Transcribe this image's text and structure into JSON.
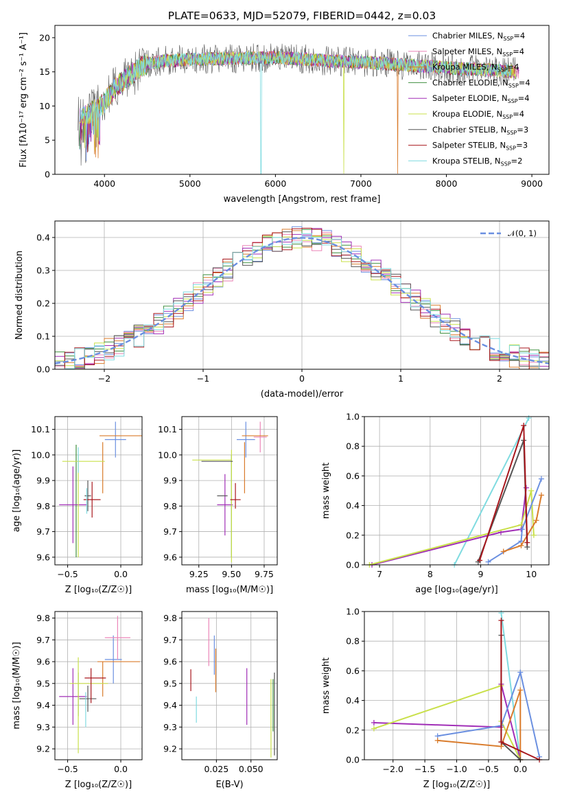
{
  "title": "PLATE=0633, MJD=52079, FIBERID=0442, z=0.03",
  "series_colors": {
    "Chabrier MILES": "#6a8fe0",
    "Salpeter MILES": "#ec86b8",
    "Kroupa MILES": "#d97b2b",
    "Chabrier ELODIE": "#3f8f3f",
    "Salpeter ELODIE": "#a02db6",
    "Kroupa ELODIE": "#c9e04a",
    "Chabrier STELIB": "#555555",
    "Salpeter STELIB": "#a8161c",
    "Kroupa STELIB": "#7fdbe0"
  },
  "legend": [
    {
      "name": "Chabrier MILES",
      "pre": "Chabrier MILES, N",
      "sub": "SSP",
      "post": "=4"
    },
    {
      "name": "Salpeter MILES",
      "pre": "Salpeter MILES, N",
      "sub": "SSP",
      "post": "=4"
    },
    {
      "name": "Kroupa MILES",
      "pre": "Kroupa MILES, N",
      "sub": "SSP",
      "post": "=4"
    },
    {
      "name": "Chabrier ELODIE",
      "pre": "Chabrier ELODIE, N",
      "sub": "SSP",
      "post": "=4"
    },
    {
      "name": "Salpeter ELODIE",
      "pre": "Salpeter ELODIE, N",
      "sub": "SSP",
      "post": "=4"
    },
    {
      "name": "Kroupa ELODIE",
      "pre": "Kroupa ELODIE, N",
      "sub": "SSP",
      "post": "=4"
    },
    {
      "name": "Chabrier STELIB",
      "pre": "Chabrier STELIB, N",
      "sub": "SSP",
      "post": "=3"
    },
    {
      "name": "Salpeter STELIB",
      "pre": "Salpeter STELIB, N",
      "sub": "SSP",
      "post": "=3"
    },
    {
      "name": "Kroupa STELIB",
      "pre": "Kroupa STELIB, N",
      "sub": "SSP",
      "post": "=2"
    }
  ],
  "chart_data": [
    {
      "id": "spectrum",
      "type": "line",
      "xlabel": "wavelength [Angstrom, rest frame]",
      "ylabel": "Flux [fλ10⁻¹⁷ erg cm⁻² s⁻¹ A⁻¹]",
      "xlim": [
        3420,
        9200
      ],
      "ylim": [
        0,
        21.8
      ],
      "xticks": [
        4000,
        5000,
        6000,
        7000,
        8000,
        9000
      ],
      "yticks": [
        0,
        5,
        10,
        15,
        20
      ],
      "grid": false,
      "legend_position": "upper right",
      "continuum": {
        "x": [
          3700,
          3800,
          3900,
          4000,
          4100,
          4200,
          4300,
          4400,
          4500,
          4700,
          5000,
          5200,
          5500,
          5800,
          6000,
          6300,
          6600,
          7000,
          7300,
          7500,
          7800,
          8000,
          8300,
          8600,
          8800
        ],
        "y": [
          8.0,
          8.8,
          9.5,
          10.5,
          12.3,
          13.5,
          14.5,
          15.5,
          16.2,
          16.6,
          16.8,
          16.9,
          17.0,
          17.0,
          17.1,
          16.9,
          16.6,
          16.4,
          16.2,
          16.0,
          15.8,
          15.6,
          15.4,
          15.2,
          15.0
        ]
      },
      "spectrum_xrange": [
        3690,
        8850
      ],
      "dropouts": [
        {
          "series": "Kroupa STELIB",
          "x": 5830
        },
        {
          "series": "Kroupa ELODIE",
          "x": 6800
        },
        {
          "series": "Kroupa MILES",
          "x": 7430
        }
      ]
    },
    {
      "id": "residuals",
      "type": "histogram",
      "xlabel": "(data-model)/error",
      "ylabel": "Normed distribution",
      "xlim": [
        -2.5,
        2.5
      ],
      "ylim": [
        0,
        0.45
      ],
      "xticks": [
        -2,
        -1,
        0,
        1,
        2
      ],
      "yticks": [
        0.0,
        0.1,
        0.2,
        0.3,
        0.4
      ],
      "bin_width": 0.1,
      "grid": true,
      "reference_curve": {
        "label": "𝒩(0, 1)",
        "mean": 0,
        "sigma": 1,
        "color": "#6a8fe0",
        "style": "dashed"
      },
      "legend_position": "upper right"
    },
    {
      "id": "age_vs_Z",
      "type": "errorbar",
      "xlabel": "Z [log₁₀(Z/Z☉)]",
      "ylabel": "age  [log₁₀(age/yr)]",
      "xlim": [
        -0.62,
        0.2
      ],
      "ylim": [
        9.57,
        10.15
      ],
      "xticks": [
        -0.5,
        0.0
      ],
      "xtick_labels": [
        "−0.5",
        "0.0"
      ],
      "yticks": [
        9.6,
        9.7,
        9.8,
        9.9,
        10.0,
        10.1
      ],
      "grid": true,
      "points": [
        {
          "series": "Chabrier MILES",
          "x": -0.05,
          "xerr": 0.1,
          "y": 10.06,
          "yerr": 0.07
        },
        {
          "series": "Salpeter MILES",
          "x": -0.05,
          "xerr": 0.0,
          "y": 10.07,
          "yerr": 0.0
        },
        {
          "series": "Kroupa MILES",
          "x": 0.0,
          "xerr": 0.2,
          "y": 10.075,
          "yerr": 0.0
        },
        {
          "series": "Kroupa MILES",
          "x": -0.17,
          "xerr": 0.0,
          "y": 9.95,
          "yerr": 0.1
        },
        {
          "series": "Chabrier ELODIE",
          "x": -0.42,
          "xerr": 0.0,
          "y": 9.82,
          "yerr": 0.22
        },
        {
          "series": "Salpeter ELODIE",
          "x": -0.45,
          "xerr": 0.13,
          "y": 9.805,
          "yerr": 0.15
        },
        {
          "series": "Kroupa ELODIE",
          "x": -0.35,
          "xerr": 0.2,
          "y": 9.975,
          "yerr": 0.0
        },
        {
          "series": "Kroupa ELODIE",
          "x": -0.4,
          "xerr": 0.0,
          "y": 9.8,
          "yerr": 0.2
        },
        {
          "series": "Chabrier STELIB",
          "x": -0.31,
          "xerr": 0.03,
          "y": 9.84,
          "yerr": 0.06
        },
        {
          "series": "Salpeter STELIB",
          "x": -0.27,
          "xerr": 0.08,
          "y": 9.825,
          "yerr": 0.07
        },
        {
          "series": "Kroupa STELIB",
          "x": -0.32,
          "xerr": 0.0,
          "y": 9.82,
          "yerr": 0.05
        },
        {
          "series": "Kroupa STELIB",
          "x": -0.4,
          "xerr": 0.0,
          "y": 9.98,
          "yerr": 0.05
        }
      ]
    },
    {
      "id": "age_vs_mass",
      "type": "errorbar",
      "xlabel": "mass [log₁₀(M/M☉)]",
      "ylabel": "",
      "xlim": [
        9.12,
        9.85
      ],
      "ylim": [
        9.57,
        10.15
      ],
      "xticks": [
        9.25,
        9.5,
        9.75
      ],
      "yticks": [
        9.6,
        9.7,
        9.8,
        9.9,
        10.0,
        10.1
      ],
      "grid": true,
      "points": [
        {
          "series": "Chabrier MILES",
          "x": 9.61,
          "xerr": 0.07,
          "y": 10.06,
          "yerr": 0.07
        },
        {
          "series": "Salpeter MILES",
          "x": 9.72,
          "xerr": 0.05,
          "y": 10.07,
          "yerr": 0.06
        },
        {
          "series": "Kroupa MILES",
          "x": 9.68,
          "xerr": 0.1,
          "y": 10.075,
          "yerr": 0.0
        },
        {
          "series": "Kroupa MILES",
          "x": 9.6,
          "xerr": 0.0,
          "y": 9.95,
          "yerr": 0.1
        },
        {
          "series": "Chabrier ELODIE",
          "x": 9.5,
          "xerr": 0.0,
          "y": 9.8,
          "yerr": 0.2
        },
        {
          "series": "Salpeter ELODIE",
          "x": 9.45,
          "xerr": 0.06,
          "y": 9.805,
          "yerr": 0.12
        },
        {
          "series": "Kroupa ELODIE",
          "x": 9.35,
          "xerr": 0.15,
          "y": 9.98,
          "yerr": 0.0
        },
        {
          "series": "Kroupa ELODIE",
          "x": 9.5,
          "xerr": 0.0,
          "y": 9.8,
          "yerr": 0.22
        },
        {
          "series": "Chabrier STELIB",
          "x": 9.43,
          "xerr": 0.04,
          "y": 9.84,
          "yerr": 0.0
        },
        {
          "series": "Chabrier STELIB",
          "x": 9.39,
          "xerr": 0.12,
          "y": 9.975,
          "yerr": 0.0
        },
        {
          "series": "Salpeter STELIB",
          "x": 9.53,
          "xerr": 0.04,
          "y": 9.825,
          "yerr": 0.0
        },
        {
          "series": "Salpeter STELIB",
          "x": 9.53,
          "xerr": 0.0,
          "y": 9.84,
          "yerr": 0.05
        }
      ]
    },
    {
      "id": "weight_vs_age",
      "type": "line",
      "xlabel": "age  [log₁₀(age/yr)]",
      "ylabel": "mass weight",
      "xlim": [
        6.7,
        10.35
      ],
      "ylim": [
        0,
        1
      ],
      "xticks": [
        7,
        8,
        9,
        10
      ],
      "yticks": [
        0.0,
        0.2,
        0.4,
        0.6,
        0.8,
        1.0
      ],
      "grid": true,
      "series": [
        {
          "name": "Kroupa STELIB",
          "x": [
            8.48,
            9.95
          ],
          "y": [
            0.0,
            0.99
          ]
        },
        {
          "name": "Salpeter ELODIE",
          "x": [
            6.85,
            9.4,
            9.8,
            9.9
          ],
          "y": [
            0.0,
            0.22,
            0.24,
            0.52
          ]
        },
        {
          "name": "Kroupa ELODIE",
          "x": [
            6.8,
            9.8,
            10.0,
            10.05
          ],
          "y": [
            0.0,
            0.27,
            0.5,
            0.2
          ]
        },
        {
          "name": "Chabrier MILES",
          "x": [
            9.15,
            9.8,
            9.82,
            10.2
          ],
          "y": [
            0.02,
            0.16,
            0.24,
            0.58
          ]
        },
        {
          "name": "Kroupa MILES",
          "x": [
            9.45,
            9.8,
            10.1,
            10.2
          ],
          "y": [
            0.09,
            0.13,
            0.3,
            0.47
          ]
        },
        {
          "name": "Chabrier STELIB",
          "x": [
            8.95,
            9.85,
            9.92
          ],
          "y": [
            0.02,
            0.84,
            0.12
          ]
        },
        {
          "name": "Salpeter STELIB",
          "x": [
            8.98,
            9.85,
            9.92
          ],
          "y": [
            0.03,
            0.94,
            0.15
          ]
        }
      ]
    },
    {
      "id": "mass_vs_Z",
      "type": "errorbar",
      "xlabel": "Z [log₁₀(Z/Z☉)]",
      "ylabel": "mass [log₁₀(M/M☉)]",
      "xlim": [
        -0.62,
        0.2
      ],
      "ylim": [
        9.15,
        9.83
      ],
      "xticks": [
        -0.5,
        0.0
      ],
      "xtick_labels": [
        "−0.5",
        "0.0"
      ],
      "yticks": [
        9.2,
        9.3,
        9.4,
        9.5,
        9.6,
        9.7,
        9.8
      ],
      "grid": true,
      "points": [
        {
          "series": "Chabrier MILES",
          "x": -0.07,
          "xerr": 0.08,
          "y": 9.61,
          "yerr": 0.11
        },
        {
          "series": "Salpeter MILES",
          "x": -0.03,
          "xerr": 0.12,
          "y": 9.71,
          "yerr": 0.1
        },
        {
          "series": "Kroupa MILES",
          "x": -0.02,
          "xerr": 0.2,
          "y": 9.6,
          "yerr": 0.0
        },
        {
          "series": "Kroupa MILES",
          "x": -0.17,
          "xerr": 0.0,
          "y": 9.52,
          "yerr": 0.08
        },
        {
          "series": "Chabrier ELODIE",
          "x": -0.4,
          "xerr": 0.0,
          "y": 9.45,
          "yerr": 0.1
        },
        {
          "series": "Salpeter ELODIE",
          "x": -0.45,
          "xerr": 0.13,
          "y": 9.44,
          "yerr": 0.13
        },
        {
          "series": "Kroupa ELODIE",
          "x": -0.3,
          "xerr": 0.18,
          "y": 9.5,
          "yerr": 0.0
        },
        {
          "series": "Kroupa ELODIE",
          "x": -0.4,
          "xerr": 0.0,
          "y": 9.4,
          "yerr": 0.22
        },
        {
          "series": "Chabrier STELIB",
          "x": -0.31,
          "xerr": 0.08,
          "y": 9.43,
          "yerr": 0.06
        },
        {
          "series": "Salpeter STELIB",
          "x": -0.24,
          "xerr": 0.1,
          "y": 9.525,
          "yerr": 0.0
        },
        {
          "series": "Salpeter STELIB",
          "x": -0.28,
          "xerr": 0.0,
          "y": 9.49,
          "yerr": 0.08
        },
        {
          "series": "Kroupa STELIB",
          "x": -0.33,
          "xerr": 0.0,
          "y": 9.38,
          "yerr": 0.08
        }
      ]
    },
    {
      "id": "mass_vs_EBV",
      "type": "errorbar",
      "xlabel": "E(B-V)",
      "ylabel": "",
      "xlim": [
        0.0,
        0.069
      ],
      "ylim": [
        9.15,
        9.83
      ],
      "xticks": [
        0.025,
        0.05
      ],
      "yticks": [
        9.2,
        9.3,
        9.4,
        9.5,
        9.6,
        9.7,
        9.8
      ],
      "grid": true,
      "points": [
        {
          "series": "Salpeter MILES",
          "x": 0.0195,
          "xerr": 0.0,
          "y": 9.69,
          "yerr": 0.11
        },
        {
          "series": "Chabrier MILES",
          "x": 0.0235,
          "xerr": 0.0,
          "y": 9.63,
          "yerr": 0.09
        },
        {
          "series": "Kroupa MILES",
          "x": 0.0245,
          "xerr": 0.0,
          "y": 9.56,
          "yerr": 0.1
        },
        {
          "series": "Salpeter STELIB",
          "x": 0.0065,
          "xerr": 0.0,
          "y": 9.515,
          "yerr": 0.05
        },
        {
          "series": "Kroupa STELIB",
          "x": 0.0105,
          "xerr": 0.0,
          "y": 9.38,
          "yerr": 0.06
        },
        {
          "series": "Salpeter ELODIE",
          "x": 0.047,
          "xerr": 0.0,
          "y": 9.44,
          "yerr": 0.13
        },
        {
          "series": "Kroupa ELODIE",
          "x": 0.0645,
          "xerr": 0.0,
          "y": 9.34,
          "yerr": 0.18
        },
        {
          "series": "Chabrier STELIB",
          "x": 0.067,
          "xerr": 0.0,
          "y": 9.36,
          "yerr": 0.19
        },
        {
          "series": "Chabrier ELODIE",
          "x": 0.066,
          "xerr": 0.0,
          "y": 9.4,
          "yerr": 0.12
        }
      ]
    },
    {
      "id": "weight_vs_Z",
      "type": "line",
      "xlabel": "Z [log₁₀(Z/Z☉)]",
      "ylabel": "mass weight",
      "xlim": [
        -2.45,
        0.45
      ],
      "ylim": [
        0,
        1
      ],
      "xticks": [
        -2.0,
        -1.5,
        -1.0,
        -0.5,
        0.0
      ],
      "xtick_labels": [
        "−2.0",
        "−1.5",
        "−1.0",
        "−0.5",
        "0.0"
      ],
      "yticks": [
        0.0,
        0.2,
        0.4,
        0.6,
        0.8,
        1.0
      ],
      "grid": true,
      "series": [
        {
          "name": "Kroupa STELIB",
          "x": [
            -0.3,
            0.0
          ],
          "y": [
            0.99,
            0.0
          ]
        },
        {
          "name": "Salpeter ELODIE",
          "x": [
            -2.3,
            -0.3,
            -0.3,
            0.0
          ],
          "y": [
            0.25,
            0.22,
            0.51,
            0.0
          ]
        },
        {
          "name": "Kroupa ELODIE",
          "x": [
            -2.3,
            -0.3,
            -0.3,
            0.0
          ],
          "y": [
            0.21,
            0.5,
            0.26,
            0.0
          ]
        },
        {
          "name": "Chabrier MILES",
          "x": [
            -1.3,
            -0.3,
            0.0,
            0.3
          ],
          "y": [
            0.16,
            0.23,
            0.59,
            0.02
          ]
        },
        {
          "name": "Kroupa MILES",
          "x": [
            -1.3,
            -0.3,
            0.0,
            0.0
          ],
          "y": [
            0.13,
            0.09,
            0.47,
            0.0
          ]
        },
        {
          "name": "Chabrier STELIB",
          "x": [
            -0.3,
            -0.3,
            0.0
          ],
          "y": [
            0.84,
            0.12,
            0.0
          ]
        },
        {
          "name": "Salpeter STELIB",
          "x": [
            -0.3,
            -0.3,
            0.3
          ],
          "y": [
            0.94,
            0.12,
            0.0
          ]
        }
      ]
    }
  ]
}
